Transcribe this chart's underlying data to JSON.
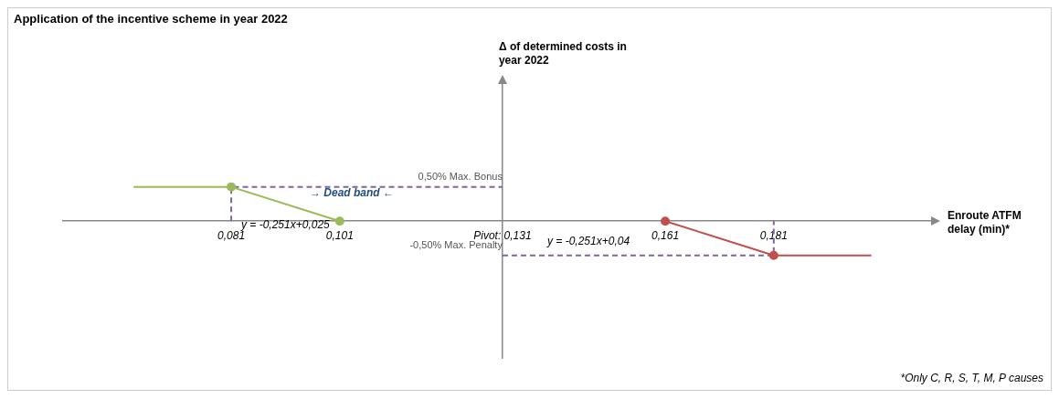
{
  "chart_data": {
    "type": "line",
    "title": "Application of the incentive scheme in year 2022",
    "xlabel": "Enroute ATFM delay (min)*",
    "ylabel": "Δ of determined costs in year 2022",
    "xlim": [
      0.05,
      0.21
    ],
    "xticks": [
      {
        "value": 0.081,
        "label": "0,081"
      },
      {
        "value": 0.101,
        "label": "0,101"
      },
      {
        "value": 0.131,
        "label": "Pivot: 0,131"
      },
      {
        "value": 0.161,
        "label": "0,161"
      },
      {
        "value": 0.181,
        "label": "0,181"
      }
    ],
    "ylim": [
      -2,
      2
    ],
    "yticks": [
      {
        "value": 0.5,
        "label": "0,50% Max. Bonus"
      },
      {
        "value": -0.5,
        "label": "-0,50% Max. Penalty"
      }
    ],
    "grid": false,
    "legend": false,
    "series": [
      {
        "color": "#9bbb59",
        "x": [
          0.063,
          0.081
        ],
        "values": [
          0.5,
          0.5
        ]
      },
      {
        "color": "#9bbb59",
        "x": [
          0.081,
          0.101
        ],
        "values": [
          0.5,
          0
        ],
        "marker": "circle"
      },
      {
        "color": "#c0504d",
        "x": [
          0.161,
          0.181
        ],
        "values": [
          0,
          -0.5
        ],
        "marker": "circle"
      },
      {
        "color": "#c0504d",
        "x": [
          0.181,
          0.199
        ],
        "values": [
          -0.5,
          -0.5
        ]
      },
      {
        "color": "#8064a2",
        "x": [
          0.081,
          0.081,
          0.131
        ],
        "values": [
          0,
          0.5,
          0.5
        ],
        "line_style": "dashed"
      },
      {
        "color": "#8064a2",
        "x": [
          0.131,
          0.181,
          0.181
        ],
        "values": [
          -0.5,
          -0.5,
          0
        ],
        "line_style": "dashed"
      }
    ],
    "annotations": [
      "y = -0,251x+0,025",
      "y = -0,251x+0,04",
      "→ Dead band ←",
      "*Only C, R, S, T, M, P causes"
    ]
  }
}
